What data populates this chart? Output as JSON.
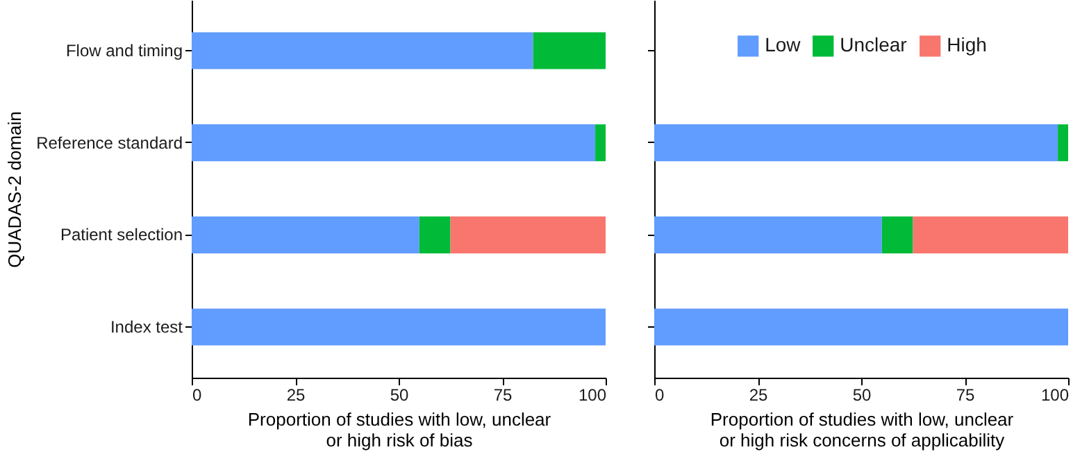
{
  "chart_data": [
    {
      "type": "bar",
      "orientation": "horizontal",
      "stacked": true,
      "categories": [
        "Flow and timing",
        "Reference standard",
        "Patient selection",
        "Index test"
      ],
      "xlim": [
        0,
        100
      ],
      "xticks": [
        0,
        25,
        50,
        75,
        100
      ],
      "xlabel": "Proportion of studies with low, unclear\nor high risk of bias",
      "ylabel": "QUADAS-2 domain",
      "series": [
        {
          "color": "#619cff",
          "values": [
            82.5,
            97.5,
            55,
            100
          ]
        },
        {
          "color": "#00ba38",
          "values": [
            17.5,
            2.5,
            7.5,
            null
          ]
        },
        {
          "color": "#f8766d",
          "values": [
            null,
            null,
            37.5,
            null
          ]
        }
      ]
    },
    {
      "type": "bar",
      "orientation": "horizontal",
      "stacked": true,
      "categories": [
        null,
        null,
        null,
        null
      ],
      "xlim": [
        0,
        100
      ],
      "xticks": [
        0,
        25,
        50,
        75,
        100
      ],
      "xlabel": "Proportion of studies with low, unclear\nor high risk concerns of applicability",
      "tick_labels": "x",
      "legend": "top",
      "series": [
        {
          "name": "Low",
          "color": "#619cff",
          "values": [
            null,
            97.5,
            55,
            100
          ]
        },
        {
          "name": "Unclear",
          "color": "#00ba38",
          "values": [
            null,
            2.5,
            7.5,
            null
          ]
        },
        {
          "name": "High",
          "color": "#f8766d",
          "values": [
            null,
            null,
            37.5,
            null
          ]
        }
      ]
    }
  ]
}
